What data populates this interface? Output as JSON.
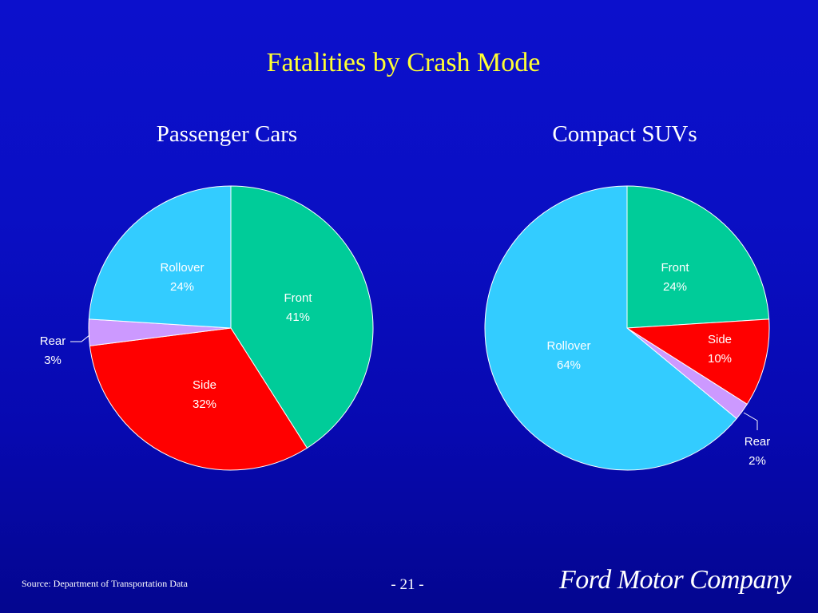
{
  "slide": {
    "title": "Fatalities by Crash Mode",
    "source": "Source: Department of Transportation Data",
    "page_number": "- 21 -",
    "logo_text": "Ford Motor Company",
    "background_color": "#0a0fc4",
    "title_color": "#ffff33"
  },
  "chart_data": [
    {
      "type": "pie",
      "title": "Passenger Cars",
      "slices": [
        {
          "name": "Front",
          "value": 41,
          "value_label": "41%",
          "color": "#00cc99"
        },
        {
          "name": "Side",
          "value": 32,
          "value_label": "32%",
          "color": "#ff0000"
        },
        {
          "name": "Rear",
          "value": 3,
          "value_label": "3%",
          "color": "#cc99ff"
        },
        {
          "name": "Rollover",
          "value": 24,
          "value_label": "24%",
          "color": "#33ccff"
        }
      ]
    },
    {
      "type": "pie",
      "title": "Compact SUVs",
      "slices": [
        {
          "name": "Front",
          "value": 24,
          "value_label": "24%",
          "color": "#00cc99"
        },
        {
          "name": "Side",
          "value": 10,
          "value_label": "10%",
          "color": "#ff0000"
        },
        {
          "name": "Rear",
          "value": 2,
          "value_label": "2%",
          "color": "#cc99ff"
        },
        {
          "name": "Rollover",
          "value": 64,
          "value_label": "64%",
          "color": "#33ccff"
        }
      ]
    }
  ]
}
